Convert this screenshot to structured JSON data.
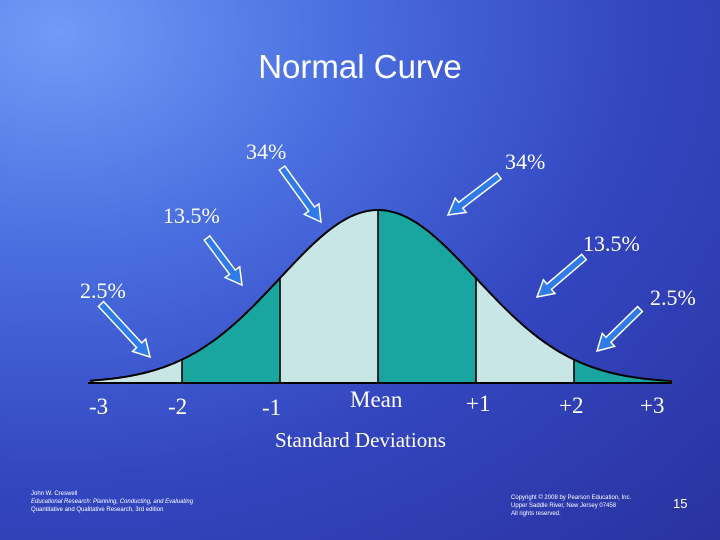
{
  "title": "Normal Curve",
  "colors": {
    "inner_band": "#c9e6e6",
    "teal_band": "#19a6a0",
    "arrow_fill": "#2f7bea",
    "arrow_stroke": "#ffffff"
  },
  "percent_labels": {
    "center_left": "34%",
    "center_right": "34%",
    "mid_left": "13.5%",
    "mid_right": "13.5%",
    "tail_left": "2.5%",
    "tail_right": "2.5%"
  },
  "sd_labels": [
    "-3",
    "-2",
    "-1",
    "Mean",
    "+1",
    "+2",
    "+3"
  ],
  "axis_title": "Standard Deviations",
  "footer_left": {
    "line1": "John W. Creswell",
    "line2": "Educational Research: Planning, Conducting, and Evaluating",
    "line3": "Quantitative and Qualitative Research, 3rd edition"
  },
  "footer_right": {
    "line1": "Copyright © 2008 by Pearson Education, Inc.",
    "line2": "Upper Saddle River, New Jersey 07458",
    "line3": "All rights reserved."
  },
  "page_number": "15"
}
